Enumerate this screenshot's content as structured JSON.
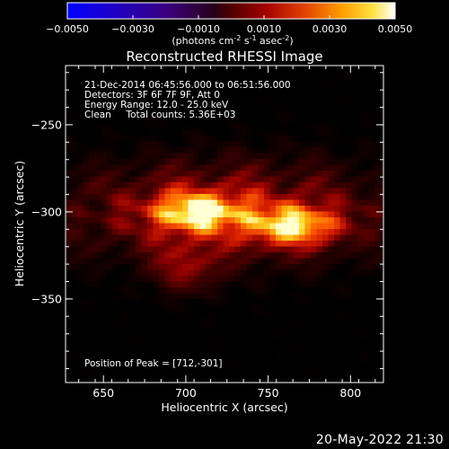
{
  "colorbar": {
    "ticks": [
      "-0.0050",
      "-0.0030",
      "-0.0010",
      "0.0010",
      "0.0030",
      "0.0050"
    ],
    "units_label": "(photons cm",
    "units_sup1": "-2",
    "units_mid": " s",
    "units_sup2": "-1",
    "units_end": " asec",
    "units_sup3": "-2",
    "units_close": ")"
  },
  "chart_data": {
    "type": "heatmap",
    "title": "Reconstructed RHESSI Image",
    "xlabel": "Heliocentric X (arcsec)",
    "ylabel": "Heliocentric Y (arcsec)",
    "xlim": [
      627,
      820
    ],
    "ylim": [
      -398,
      -216
    ],
    "xticks": [
      650,
      700,
      750,
      800
    ],
    "yticks": [
      -350,
      -300,
      -250
    ],
    "xtick_labels": [
      "650",
      "700",
      "750",
      "800"
    ],
    "ytick_labels": [
      "−350",
      "−300",
      "−250"
    ],
    "colorscale_min": -0.005,
    "colorscale_max": 0.005,
    "annotations": {
      "line1": "21-Dec-2014 06:45:56.000 to 06:51:56.000",
      "line2": "Detectors: 3F 6F 7F 9F, Att 0",
      "line3": "Energy Range: 12.0 - 25.0 keV",
      "line4": "Clean     Total counts: 5.36E+03",
      "peak": "Position of Peak = [712,-301]"
    },
    "sources": [
      {
        "x": 707,
        "y": -300,
        "relative_intensity": 1.0
      },
      {
        "x": 765,
        "y": -308,
        "relative_intensity": 0.95
      }
    ],
    "peak": [
      712,
      -301
    ]
  },
  "footer": {
    "timestamp": "20-May-2022 21:30"
  }
}
